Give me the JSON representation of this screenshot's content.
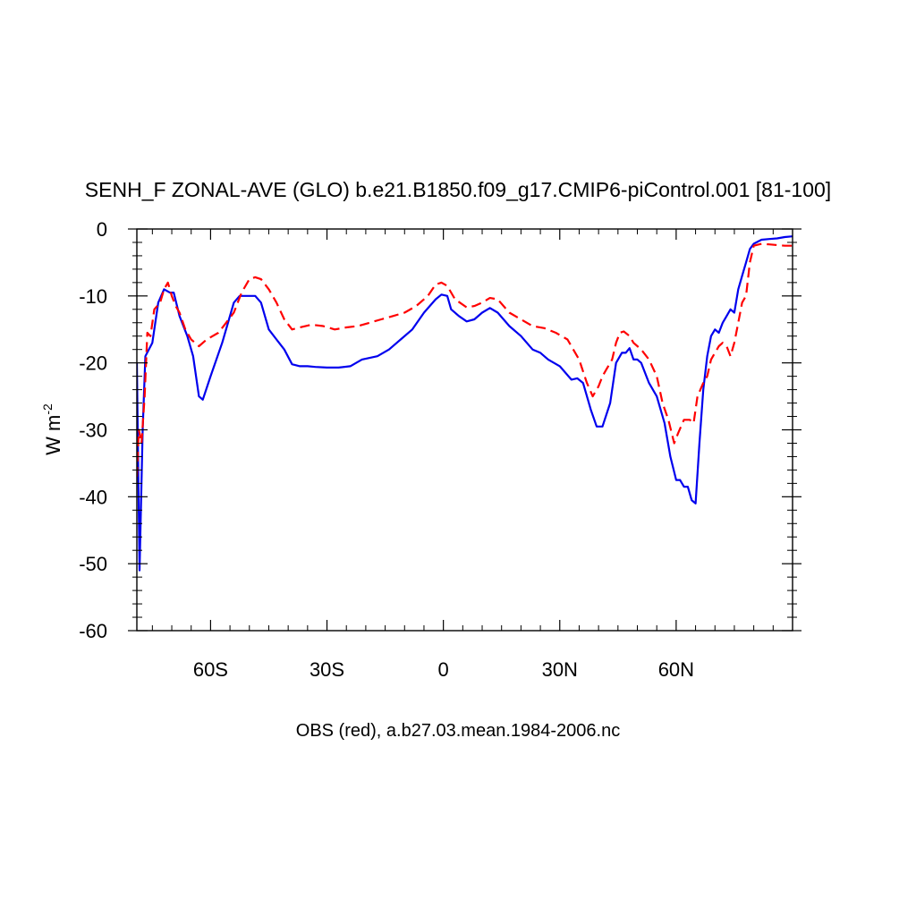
{
  "chart_data": {
    "type": "line",
    "title": "SENH_F ZONAL-AVE (GLO) b.e21.B1850.f09_g17.CMIP6-piControl.001 [81-100]",
    "ylabel_main": "W m",
    "ylabel_exp": "-2",
    "xlabel": "OBS (red), a.b27.03.mean.1984-2006.nc",
    "xlim": [
      -79,
      90
    ],
    "ylim": [
      -60,
      0
    ],
    "xticks": [
      {
        "value": -60,
        "label": "60S"
      },
      {
        "value": -30,
        "label": "30S"
      },
      {
        "value": 0,
        "label": "0"
      },
      {
        "value": 30,
        "label": "30N"
      },
      {
        "value": 60,
        "label": "60N"
      }
    ],
    "yticks": [
      {
        "value": 0,
        "label": "0"
      },
      {
        "value": -10,
        "label": "-10"
      },
      {
        "value": -20,
        "label": "-20"
      },
      {
        "value": -30,
        "label": "-30"
      },
      {
        "value": -40,
        "label": "-40"
      },
      {
        "value": -50,
        "label": "-50"
      },
      {
        "value": -60,
        "label": "-60"
      }
    ],
    "series": [
      {
        "color": "#0000ee",
        "dash": "solid",
        "points": [
          [
            -79,
            -20
          ],
          [
            -78.3,
            -51
          ],
          [
            -77.5,
            -30
          ],
          [
            -76.8,
            -19
          ],
          [
            -75,
            -17
          ],
          [
            -73.5,
            -11
          ],
          [
            -72,
            -9
          ],
          [
            -70.5,
            -9.5
          ],
          [
            -69.5,
            -9.5
          ],
          [
            -68,
            -13
          ],
          [
            -66,
            -16
          ],
          [
            -64.5,
            -19
          ],
          [
            -63,
            -25
          ],
          [
            -62,
            -25.5
          ],
          [
            -60,
            -22
          ],
          [
            -57,
            -17
          ],
          [
            -54,
            -11
          ],
          [
            -52.5,
            -10
          ],
          [
            -50.5,
            -10
          ],
          [
            -48.5,
            -10
          ],
          [
            -47,
            -11
          ],
          [
            -45,
            -15
          ],
          [
            -43,
            -16.5
          ],
          [
            -41,
            -18
          ],
          [
            -39,
            -20.2
          ],
          [
            -37,
            -20.5
          ],
          [
            -35,
            -20.5
          ],
          [
            -33,
            -20.6
          ],
          [
            -30,
            -20.7
          ],
          [
            -27,
            -20.7
          ],
          [
            -24,
            -20.5
          ],
          [
            -21,
            -19.5
          ],
          [
            -17,
            -19
          ],
          [
            -14,
            -18
          ],
          [
            -11,
            -16.5
          ],
          [
            -8,
            -15
          ],
          [
            -5,
            -12.5
          ],
          [
            -2,
            -10.5
          ],
          [
            -0.5,
            -9.8
          ],
          [
            1,
            -10
          ],
          [
            2,
            -12
          ],
          [
            4,
            -13
          ],
          [
            6,
            -13.8
          ],
          [
            8,
            -13.5
          ],
          [
            10,
            -12.5
          ],
          [
            12,
            -11.8
          ],
          [
            14,
            -12.5
          ],
          [
            17,
            -14.5
          ],
          [
            20,
            -16
          ],
          [
            23,
            -18
          ],
          [
            25,
            -18.5
          ],
          [
            27,
            -19.5
          ],
          [
            30,
            -20.5
          ],
          [
            33,
            -22.5
          ],
          [
            34.5,
            -22.3
          ],
          [
            36,
            -23
          ],
          [
            38,
            -27
          ],
          [
            39.5,
            -29.5
          ],
          [
            41,
            -29.5
          ],
          [
            43,
            -26
          ],
          [
            44.5,
            -20
          ],
          [
            46,
            -18.5
          ],
          [
            47,
            -18.5
          ],
          [
            48,
            -17.8
          ],
          [
            49,
            -19.5
          ],
          [
            50,
            -19.5
          ],
          [
            51,
            -20
          ],
          [
            53,
            -23
          ],
          [
            55,
            -25
          ],
          [
            57,
            -29
          ],
          [
            58.5,
            -34
          ],
          [
            60,
            -37.5
          ],
          [
            61,
            -37.5
          ],
          [
            62,
            -38.5
          ],
          [
            63,
            -38.5
          ],
          [
            64,
            -40.5
          ],
          [
            65,
            -41
          ],
          [
            66,
            -32
          ],
          [
            67,
            -24
          ],
          [
            68,
            -19
          ],
          [
            69,
            -16
          ],
          [
            70,
            -15
          ],
          [
            71,
            -15.5
          ],
          [
            72,
            -14
          ],
          [
            73,
            -13
          ],
          [
            74,
            -12
          ],
          [
            75,
            -12.5
          ],
          [
            76,
            -9
          ],
          [
            77,
            -7
          ],
          [
            78,
            -5
          ],
          [
            79,
            -3
          ],
          [
            80,
            -2.2
          ],
          [
            82,
            -1.6
          ],
          [
            84,
            -1.5
          ],
          [
            86,
            -1.4
          ],
          [
            88,
            -1.2
          ],
          [
            90,
            -1.1
          ]
        ]
      },
      {
        "color": "#ff0000",
        "dash": "dashed",
        "points": [
          [
            -79,
            -37
          ],
          [
            -78.5,
            -30
          ],
          [
            -77.8,
            -32
          ],
          [
            -77,
            -25
          ],
          [
            -76.3,
            -15.5
          ],
          [
            -75.5,
            -16
          ],
          [
            -74.5,
            -12
          ],
          [
            -73,
            -11
          ],
          [
            -72,
            -9
          ],
          [
            -71,
            -8
          ],
          [
            -70,
            -10
          ],
          [
            -69,
            -11.5
          ],
          [
            -68,
            -12.5
          ],
          [
            -66.5,
            -15
          ],
          [
            -65,
            -16.5
          ],
          [
            -63,
            -17.5
          ],
          [
            -61,
            -16.5
          ],
          [
            -58,
            -15.5
          ],
          [
            -56,
            -14
          ],
          [
            -54,
            -12.5
          ],
          [
            -52,
            -9.5
          ],
          [
            -50,
            -7.5
          ],
          [
            -48.5,
            -7.2
          ],
          [
            -47,
            -7.5
          ],
          [
            -45,
            -9
          ],
          [
            -43,
            -11
          ],
          [
            -41,
            -13.5
          ],
          [
            -39,
            -15
          ],
          [
            -37,
            -14.7
          ],
          [
            -34,
            -14.3
          ],
          [
            -31,
            -14.5
          ],
          [
            -28,
            -15
          ],
          [
            -25,
            -14.7
          ],
          [
            -22,
            -14.5
          ],
          [
            -19,
            -14
          ],
          [
            -16,
            -13.5
          ],
          [
            -13,
            -13
          ],
          [
            -10,
            -12.5
          ],
          [
            -7,
            -11.5
          ],
          [
            -4,
            -10
          ],
          [
            -2,
            -8.3
          ],
          [
            -0.5,
            -8
          ],
          [
            1,
            -8.5
          ],
          [
            3,
            -10.5
          ],
          [
            6,
            -11.7
          ],
          [
            8,
            -11.5
          ],
          [
            10,
            -11
          ],
          [
            12,
            -10.3
          ],
          [
            14,
            -10.5
          ],
          [
            17,
            -12.5
          ],
          [
            20,
            -13.5
          ],
          [
            23,
            -14.5
          ],
          [
            26,
            -14.8
          ],
          [
            29,
            -15.5
          ],
          [
            32,
            -16.5
          ],
          [
            35,
            -19.5
          ],
          [
            37,
            -23
          ],
          [
            38.5,
            -25
          ],
          [
            40,
            -23.5
          ],
          [
            41,
            -22
          ],
          [
            42,
            -21
          ],
          [
            43.5,
            -19.5
          ],
          [
            44.5,
            -17
          ],
          [
            45.5,
            -15.5
          ],
          [
            46.5,
            -15.3
          ],
          [
            48,
            -16
          ],
          [
            49,
            -17
          ],
          [
            51,
            -18
          ],
          [
            53,
            -19.5
          ],
          [
            55,
            -22
          ],
          [
            56.5,
            -26
          ],
          [
            58,
            -28.5
          ],
          [
            59.5,
            -32
          ],
          [
            60.5,
            -30.5
          ],
          [
            62,
            -28.5
          ],
          [
            63.5,
            -28.5
          ],
          [
            64.5,
            -29
          ],
          [
            65.5,
            -25
          ],
          [
            67,
            -23
          ],
          [
            68,
            -22
          ],
          [
            69,
            -19.5
          ],
          [
            70,
            -18.5
          ],
          [
            71,
            -17.5
          ],
          [
            72,
            -17
          ],
          [
            73,
            -17.5
          ],
          [
            74,
            -19
          ],
          [
            75,
            -17
          ],
          [
            76,
            -14
          ],
          [
            77,
            -11
          ],
          [
            78,
            -10
          ],
          [
            79,
            -5
          ],
          [
            80,
            -2.5
          ],
          [
            82,
            -2.2
          ],
          [
            84,
            -2.3
          ],
          [
            86,
            -2.4
          ],
          [
            88,
            -2.5
          ],
          [
            90,
            -2.5
          ]
        ]
      }
    ]
  }
}
